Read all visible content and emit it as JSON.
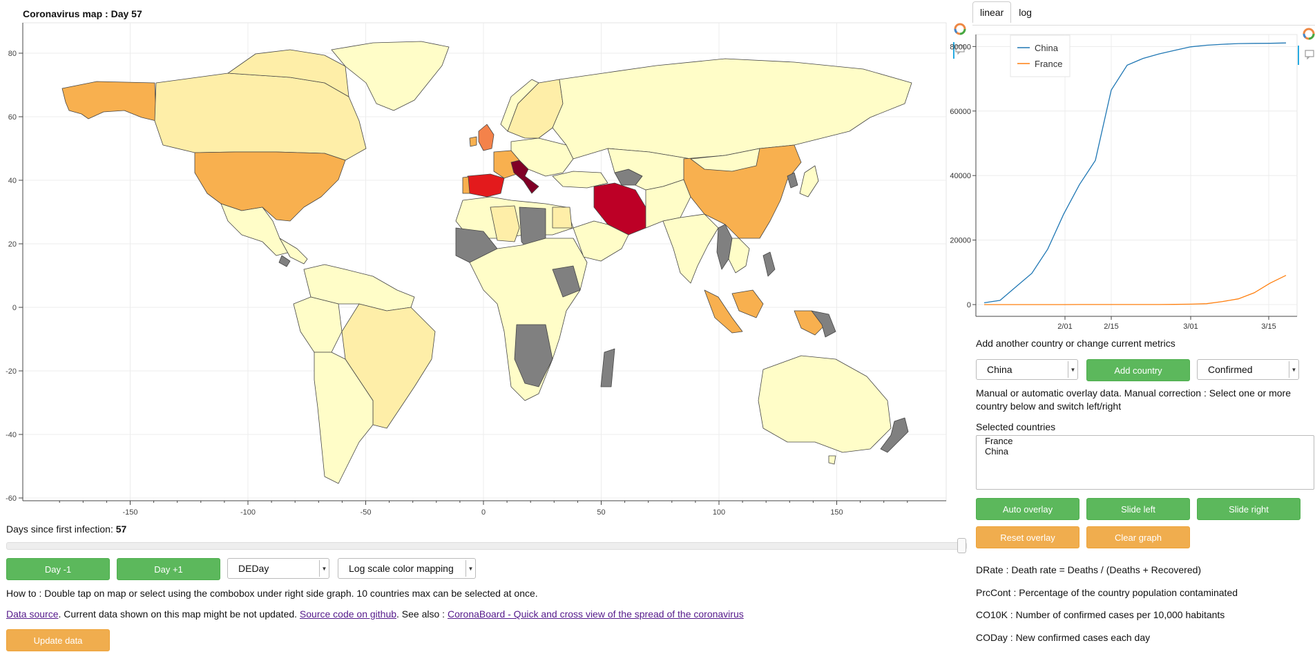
{
  "map": {
    "title": "Coronavirus map : Day 57",
    "yticks": [
      "80",
      "60",
      "40",
      "20",
      "0",
      "-20",
      "-40",
      "-60"
    ],
    "xticks": [
      "-150",
      "-100",
      "-50",
      "0",
      "50",
      "100",
      "150"
    ]
  },
  "tabs": [
    {
      "label": "linear"
    },
    {
      "label": "log"
    }
  ],
  "chart_data": {
    "type": "line",
    "x": [
      "1/22",
      "1/25",
      "1/28",
      "1/31",
      "2/03",
      "2/06",
      "2/09",
      "2/12",
      "2/15",
      "2/18",
      "2/21",
      "2/24",
      "2/27",
      "3/01",
      "3/04",
      "3/07",
      "3/10",
      "3/13",
      "3/16",
      "3/18"
    ],
    "series": [
      {
        "name": "China",
        "color": "#1f77b4",
        "values": [
          550,
          1300,
          5500,
          9700,
          17200,
          28000,
          37200,
          44700,
          66500,
          74200,
          76300,
          77700,
          78800,
          79900,
          80400,
          80700,
          80900,
          80980,
          81000,
          81100
        ]
      },
      {
        "name": "France",
        "color": "#ff7f0e",
        "values": [
          0,
          3,
          4,
          6,
          6,
          6,
          11,
          11,
          12,
          12,
          12,
          12,
          57,
          130,
          285,
          950,
          1780,
          3660,
          6650,
          9050
        ]
      }
    ],
    "xticks": [
      "2/01",
      "2/15",
      "3/01",
      "3/15"
    ],
    "yticks": [
      "0",
      "20000",
      "40000",
      "60000",
      "80000"
    ],
    "ylim": [
      0,
      82000
    ],
    "legend": "top-left",
    "scale": "linear"
  },
  "controls": {
    "add_label": "Add another country or change current metrics",
    "country_value": "China",
    "add_button": "Add country",
    "metric_value": "Confirmed",
    "overlay_text": "Manual or automatic overlay data. Manual correction : Select one or more country below and switch left/right",
    "selected_label": "Selected countries",
    "selected": [
      "France",
      "China"
    ],
    "auto_overlay": "Auto overlay",
    "slide_left": "Slide left",
    "slide_right": "Slide right",
    "reset_overlay": "Reset overlay",
    "clear_graph": "Clear graph"
  },
  "definitions": [
    "DRate : Death rate = Deaths / (Deaths + Recovered)",
    "PrcCont : Percentage of the country population contaminated",
    "CO10K : Number of confirmed cases per 10,000 habitants",
    "CODay : New confirmed cases each day"
  ],
  "bottom": {
    "days_label": "Days since first infection: ",
    "days_value": "57",
    "slider_fraction": 1.0,
    "day_minus": "Day -1",
    "day_plus": "Day +1",
    "mode_value": "DEDay",
    "scale_value": "Log scale color mapping",
    "howto": "How to : Double tap on map or select using the combobox under right side graph. 10 countries max can be selected at once.",
    "data_source": "Data source",
    "data_note": ". Current data shown on this map might be not updated. ",
    "source_code": "Source code on github",
    "see_also": ". See also : ",
    "coronaboard": "CoronaBoard - Quick and cross view of the spread of the coronavirus",
    "update_button": "Update data"
  }
}
